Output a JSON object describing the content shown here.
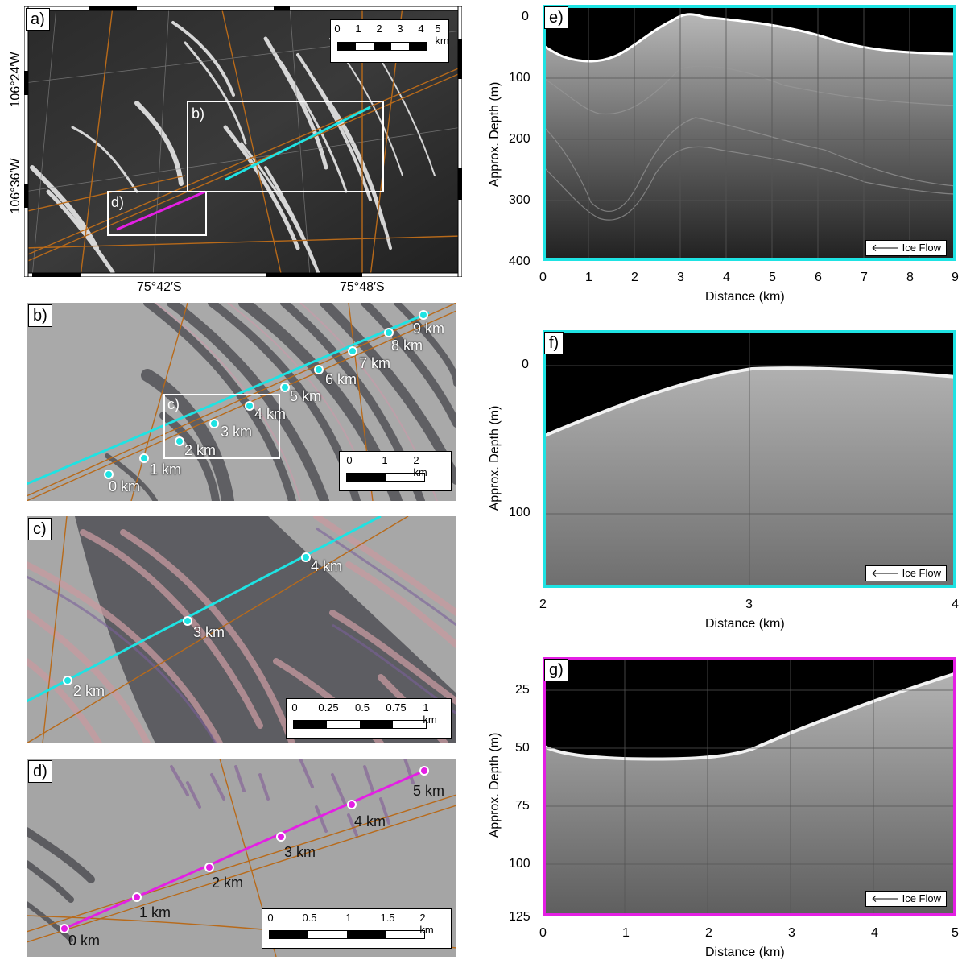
{
  "panels": {
    "a": {
      "label": "a)",
      "box_b": "b)",
      "box_d": "d)",
      "scale_ticks": [
        "0",
        "1",
        "2",
        "3",
        "4",
        "5 km"
      ],
      "lat_labels": [
        "75°42′S",
        "75°48′S"
      ],
      "lon_labels": [
        "106°24′W",
        "106°36′W"
      ]
    },
    "b": {
      "label": "b)",
      "box_c": "c)",
      "km_marks": [
        "0 km",
        "1 km",
        "2 km",
        "3 km",
        "4 km",
        "5 km",
        "6 km",
        "7 km",
        "8 km",
        "9 km"
      ],
      "scale_ticks": [
        "0",
        "1",
        "2 km"
      ]
    },
    "c": {
      "label": "c)",
      "km_marks": [
        "2 km",
        "3 km",
        "4 km"
      ],
      "scale_ticks": [
        "0",
        "0.25",
        "0.5",
        "0.75",
        "1 km"
      ]
    },
    "d": {
      "label": "d)",
      "km_marks": [
        "0 km",
        "1 km",
        "2 km",
        "3 km",
        "4 km",
        "5 km"
      ],
      "scale_ticks": [
        "0",
        "0.5",
        "1",
        "1.5",
        "2 km"
      ]
    },
    "e": {
      "label": "e)",
      "ylabel": "Approx. Depth (m)",
      "xlabel": "Distance (km)",
      "yticks": [
        "0",
        "100",
        "200",
        "300",
        "400"
      ],
      "xticks": [
        "0",
        "1",
        "2",
        "3",
        "4",
        "5",
        "6",
        "7",
        "8",
        "9"
      ],
      "ice_flow": "Ice Flow",
      "frame_color": "#1ee3e3"
    },
    "f": {
      "label": "f)",
      "ylabel": "Approx. Depth (m)",
      "xlabel": "Distance (km)",
      "yticks": [
        "0",
        "100"
      ],
      "xticks": [
        "2",
        "3",
        "4"
      ],
      "ice_flow": "Ice Flow",
      "frame_color": "#1ee3e3"
    },
    "g": {
      "label": "g)",
      "ylabel": "Approx. Depth (m)",
      "xlabel": "Distance (km)",
      "yticks": [
        "25",
        "50",
        "75",
        "100",
        "125"
      ],
      "xticks": [
        "0",
        "1",
        "2",
        "3",
        "4",
        "5"
      ],
      "ice_flow": "Ice Flow",
      "frame_color": "#e41fe4"
    }
  },
  "colors": {
    "profile_cyan": "#1ee3e3",
    "profile_magenta": "#e41fe4",
    "flight_lines": "#b86a1a"
  }
}
